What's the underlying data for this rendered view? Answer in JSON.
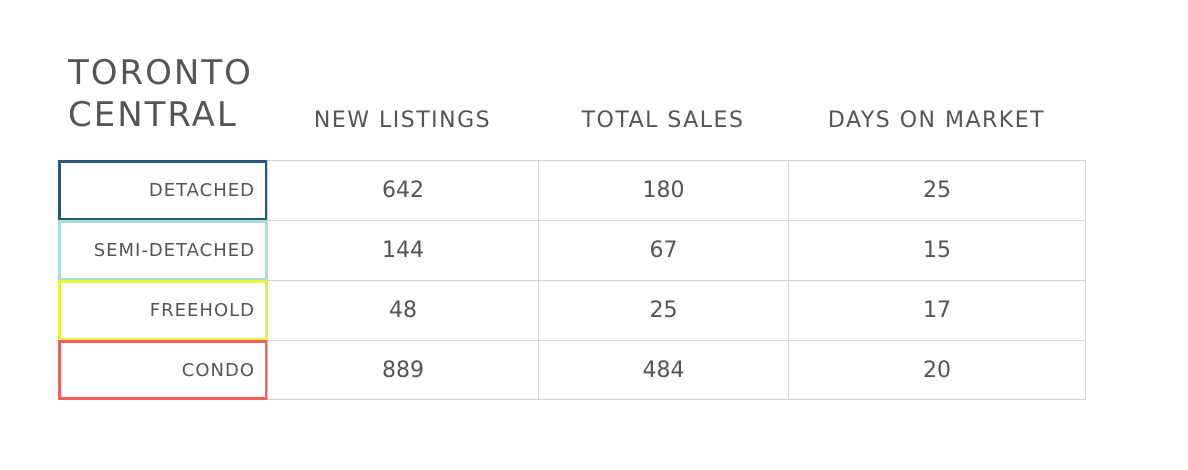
{
  "title": "TORONTO CENTRAL",
  "table": {
    "columns": [
      "NEW LISTINGS",
      "TOTAL SALES",
      "DAYS ON MARKET"
    ],
    "rows": [
      {
        "label": "DETACHED",
        "color": "#2f5576",
        "values": [
          642,
          180,
          25
        ]
      },
      {
        "label": "SEMI-DETACHED",
        "color": "#a8dcd8",
        "values": [
          144,
          67,
          15
        ]
      },
      {
        "label": "FREEHOLD",
        "color": "#e6f53a",
        "values": [
          48,
          25,
          17
        ]
      },
      {
        "label": "CONDO",
        "color": "#f0605c",
        "values": [
          889,
          484,
          20
        ]
      }
    ]
  }
}
